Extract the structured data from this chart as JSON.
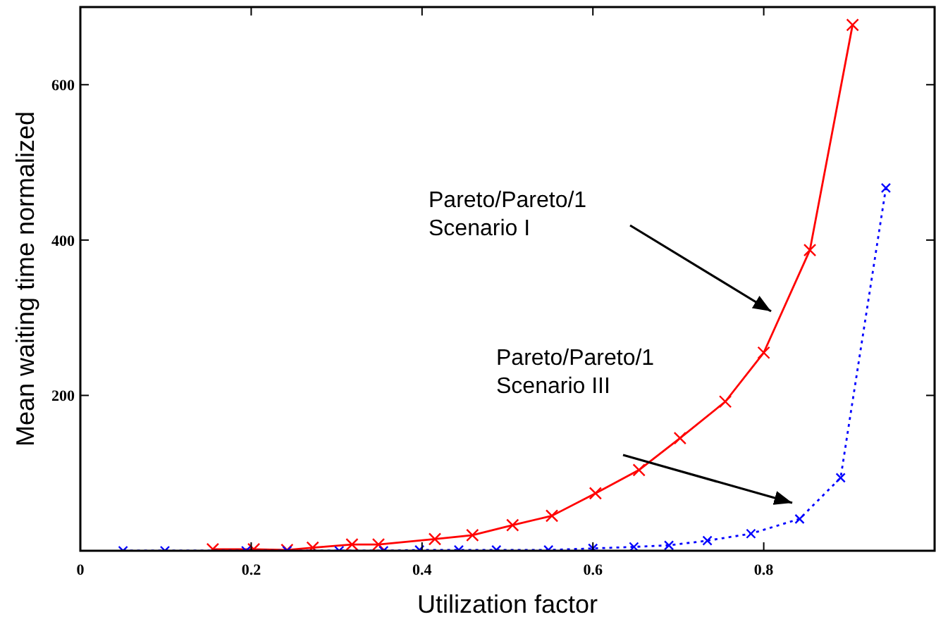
{
  "chart_data": {
    "type": "line",
    "xlabel": "Utilization factor",
    "ylabel": "Mean waiting time normalized",
    "xlim": [
      0,
      1
    ],
    "ylim": [
      0,
      700
    ],
    "xticks": [
      0,
      0.2,
      0.4,
      0.6,
      0.8
    ],
    "yticks": [
      200,
      400,
      600
    ],
    "grid": false,
    "series": [
      {
        "color": "#ff0000",
        "marker": "cross",
        "line_style": "solid",
        "x": [
          0.155,
          0.203,
          0.242,
          0.272,
          0.318,
          0.349,
          0.415,
          0.459,
          0.506,
          0.552,
          0.603,
          0.654,
          0.702,
          0.755,
          0.8,
          0.854,
          0.904
        ],
        "values": [
          2,
          2,
          1,
          4,
          8,
          8,
          15,
          20,
          33,
          45,
          74,
          104,
          145,
          192,
          255,
          387,
          677
        ]
      },
      {
        "color": "#0000ff",
        "marker": "cross",
        "line_style": "dotted",
        "x": [
          0.05,
          0.099,
          0.194,
          0.242,
          0.303,
          0.355,
          0.397,
          0.443,
          0.487,
          0.548,
          0.6,
          0.648,
          0.689,
          0.734,
          0.785,
          0.842,
          0.89,
          0.943
        ],
        "values": [
          0,
          0,
          0,
          0,
          0,
          0,
          1,
          1,
          1,
          1,
          3,
          5,
          7,
          13,
          22,
          41,
          94,
          467
        ]
      }
    ],
    "annotations": [
      "Pareto/Pareto/1\nScenario I",
      "Pareto/Pareto/1\nScenario III"
    ]
  }
}
